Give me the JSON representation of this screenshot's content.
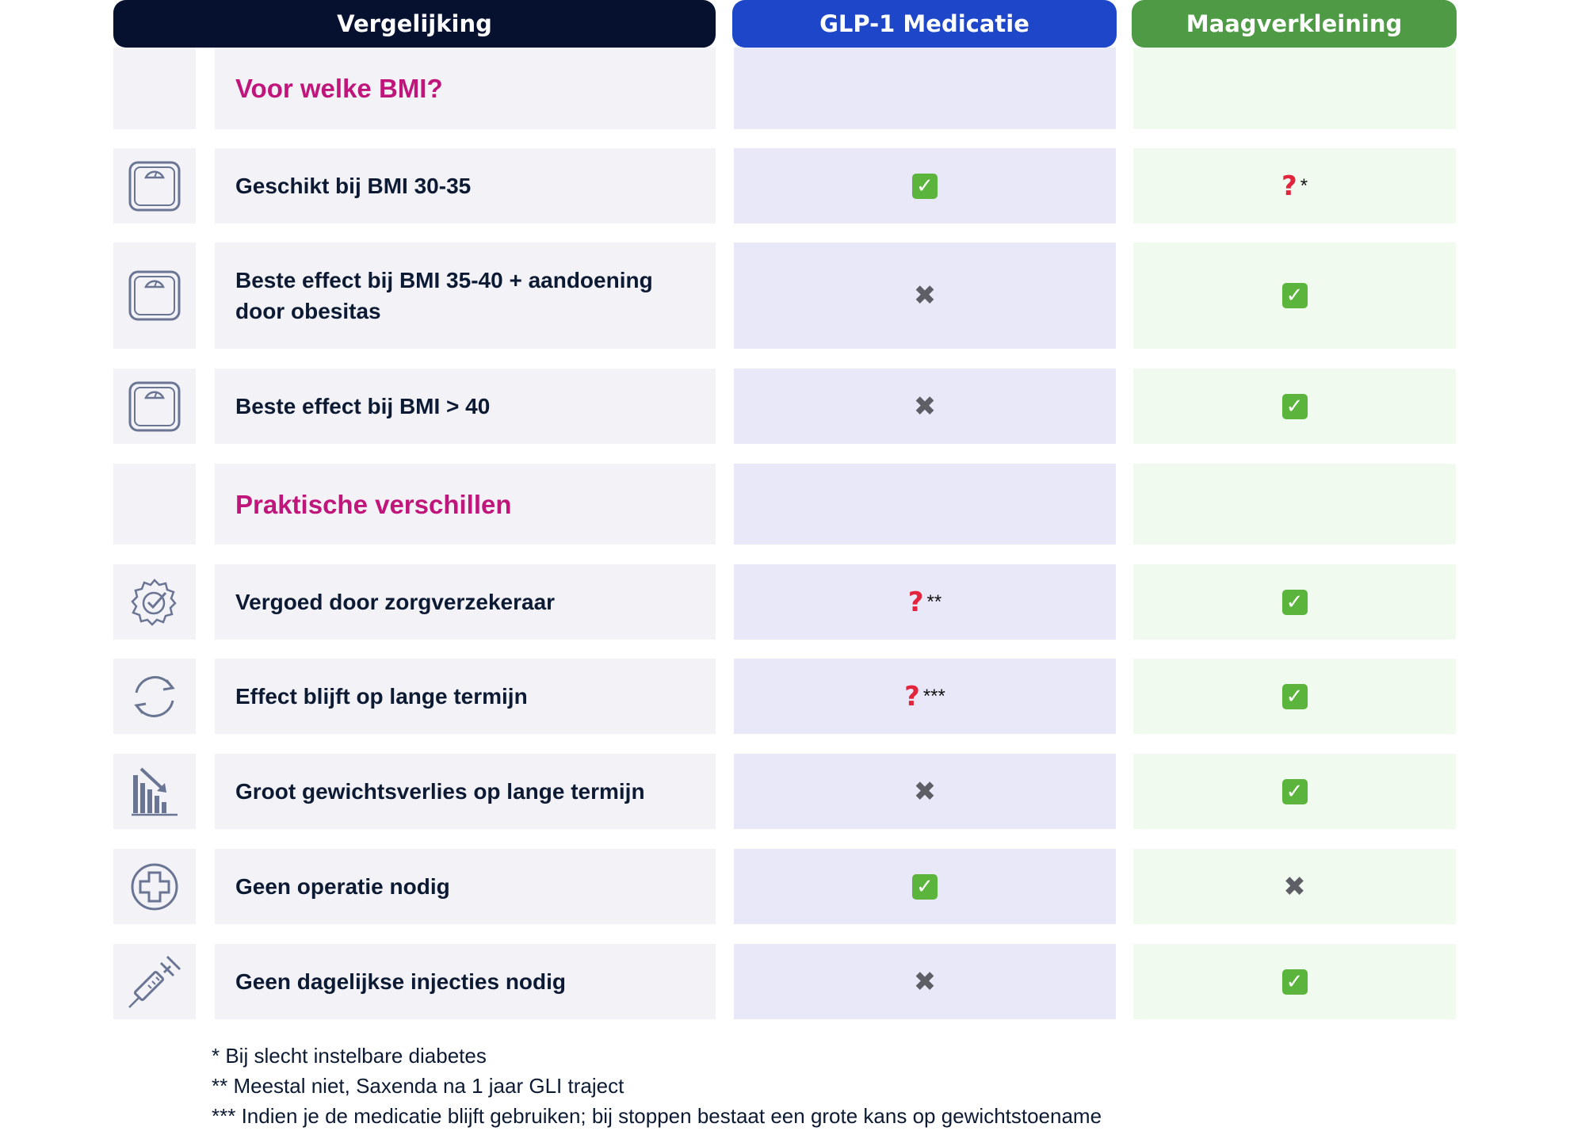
{
  "headers": {
    "comparison": "Vergelijking",
    "glp1": "GLP-1 Medicatie",
    "maag": "Maagverkleining"
  },
  "sections": [
    {
      "title": "Voor welke BMI?",
      "rows": [
        {
          "icon": "scale-icon",
          "label": "Geschikt bij BMI 30-35",
          "glp1": {
            "mark": "check",
            "note": ""
          },
          "maag": {
            "mark": "question",
            "note": "*"
          }
        },
        {
          "icon": "scale-icon",
          "label": "Beste effect bij BMI 35-40 + aandoening door obesitas",
          "glp1": {
            "mark": "cross",
            "note": ""
          },
          "maag": {
            "mark": "check",
            "note": ""
          }
        },
        {
          "icon": "scale-icon",
          "label": "Beste effect bij BMI > 40",
          "glp1": {
            "mark": "cross",
            "note": ""
          },
          "maag": {
            "mark": "check",
            "note": ""
          }
        }
      ]
    },
    {
      "title": "Praktische verschillen",
      "rows": [
        {
          "icon": "verified-badge-icon",
          "label": "Vergoed door zorgverzekeraar",
          "glp1": {
            "mark": "question",
            "note": "**"
          },
          "maag": {
            "mark": "check",
            "note": ""
          }
        },
        {
          "icon": "refresh-cycle-icon",
          "label": "Effect blijft op lange termijn",
          "glp1": {
            "mark": "question",
            "note": "***"
          },
          "maag": {
            "mark": "check",
            "note": ""
          }
        },
        {
          "icon": "declining-chart-icon",
          "label": "Groot gewichtsverlies op lange termijn",
          "glp1": {
            "mark": "cross",
            "note": ""
          },
          "maag": {
            "mark": "check",
            "note": ""
          }
        },
        {
          "icon": "medical-cross-icon",
          "label": "Geen operatie nodig",
          "glp1": {
            "mark": "check",
            "note": ""
          },
          "maag": {
            "mark": "cross",
            "note": ""
          }
        },
        {
          "icon": "syringe-icon",
          "label": "Geen dagelijkse injecties nodig",
          "glp1": {
            "mark": "cross",
            "note": ""
          },
          "maag": {
            "mark": "check",
            "note": ""
          }
        }
      ]
    }
  ],
  "footnotes": [
    "* Bij slecht instelbare diabetes",
    "** Meestal niet, Saxenda na 1 jaar GLI traject",
    "*** Indien je de medicatie blijft gebruiken; bij stoppen bestaat een grote kans op gewichtstoename"
  ],
  "colors": {
    "header_dark": "#06112f",
    "header_blue": "#1e46c8",
    "header_green": "#4e9a45",
    "section_title": "#c0157a",
    "check_green": "#5bb53c",
    "question_red": "#e2253d",
    "cross_gray": "#5e5e66"
  }
}
